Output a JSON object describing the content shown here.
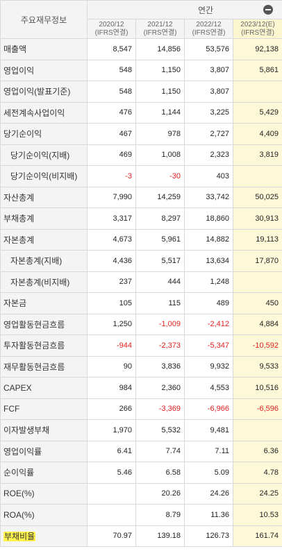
{
  "header": {
    "label_col": "주요재무정보",
    "group": "연간",
    "periods": [
      {
        "date": "2020/12",
        "basis": "(IFRS연결)",
        "estimate": false
      },
      {
        "date": "2021/12",
        "basis": "(IFRS연결)",
        "estimate": false
      },
      {
        "date": "2022/12",
        "basis": "(IFRS연결)",
        "estimate": false
      },
      {
        "date": "2023/12(E)",
        "basis": "(IFRS연결)",
        "estimate": true
      }
    ]
  },
  "rows": [
    {
      "label": "매출액",
      "indent": false,
      "values": [
        "8,547",
        "14,856",
        "53,576",
        "92,138"
      ]
    },
    {
      "label": "영업이익",
      "indent": false,
      "values": [
        "548",
        "1,150",
        "3,807",
        "5,861"
      ]
    },
    {
      "label": "영업이익(발표기준)",
      "indent": false,
      "values": [
        "548",
        "1,150",
        "3,807",
        ""
      ]
    },
    {
      "label": "세전계속사업이익",
      "indent": false,
      "values": [
        "476",
        "1,144",
        "3,225",
        "5,429"
      ]
    },
    {
      "label": "당기순이익",
      "indent": false,
      "values": [
        "467",
        "978",
        "2,727",
        "4,409"
      ]
    },
    {
      "label": "당기순이익(지배)",
      "indent": true,
      "values": [
        "469",
        "1,008",
        "2,323",
        "3,819"
      ]
    },
    {
      "label": "당기순이익(비지배)",
      "indent": true,
      "values": [
        "-3",
        "-30",
        "403",
        ""
      ]
    },
    {
      "label": "자산총계",
      "indent": false,
      "values": [
        "7,990",
        "14,259",
        "33,742",
        "50,025"
      ]
    },
    {
      "label": "부채총계",
      "indent": false,
      "values": [
        "3,317",
        "8,297",
        "18,860",
        "30,913"
      ]
    },
    {
      "label": "자본총계",
      "indent": false,
      "values": [
        "4,673",
        "5,961",
        "14,882",
        "19,113"
      ]
    },
    {
      "label": "자본총계(지배)",
      "indent": true,
      "values": [
        "4,436",
        "5,517",
        "13,634",
        "17,870"
      ]
    },
    {
      "label": "자본총계(비지배)",
      "indent": true,
      "values": [
        "237",
        "444",
        "1,248",
        ""
      ]
    },
    {
      "label": "자본금",
      "indent": false,
      "values": [
        "105",
        "115",
        "489",
        "450"
      ]
    },
    {
      "label": "영업활동현금흐름",
      "indent": false,
      "values": [
        "1,250",
        "-1,009",
        "-2,412",
        "4,884"
      ]
    },
    {
      "label": "투자활동현금흐름",
      "indent": false,
      "values": [
        "-944",
        "-2,373",
        "-5,347",
        "-10,592"
      ]
    },
    {
      "label": "재무활동현금흐름",
      "indent": false,
      "values": [
        "90",
        "3,836",
        "9,932",
        "9,533"
      ]
    },
    {
      "label": "CAPEX",
      "indent": false,
      "values": [
        "984",
        "2,360",
        "4,553",
        "10,516"
      ]
    },
    {
      "label": "FCF",
      "indent": false,
      "values": [
        "266",
        "-3,369",
        "-6,966",
        "-6,596"
      ]
    },
    {
      "label": "이자발생부채",
      "indent": false,
      "values": [
        "1,970",
        "5,532",
        "9,481",
        ""
      ]
    },
    {
      "label": "영업이익률",
      "indent": false,
      "values": [
        "6.41",
        "7.74",
        "7.11",
        "6.36"
      ]
    },
    {
      "label": "순이익률",
      "indent": false,
      "values": [
        "5.46",
        "6.58",
        "5.09",
        "4.78"
      ]
    },
    {
      "label": "ROE(%)",
      "indent": false,
      "values": [
        "",
        "20.26",
        "24.26",
        "24.25"
      ]
    },
    {
      "label": "ROA(%)",
      "indent": false,
      "values": [
        "",
        "8.79",
        "11.36",
        "10.53"
      ]
    },
    {
      "label": "부채비율",
      "indent": false,
      "highlight": true,
      "values": [
        "70.97",
        "139.18",
        "126.73",
        "161.74"
      ]
    }
  ],
  "colors": {
    "header_bg": "#f4f4f4",
    "estimate_bg": "#fdf9d8",
    "negative": "#e02020",
    "highlight": "#fff34d",
    "border": "#d9d9d9"
  }
}
